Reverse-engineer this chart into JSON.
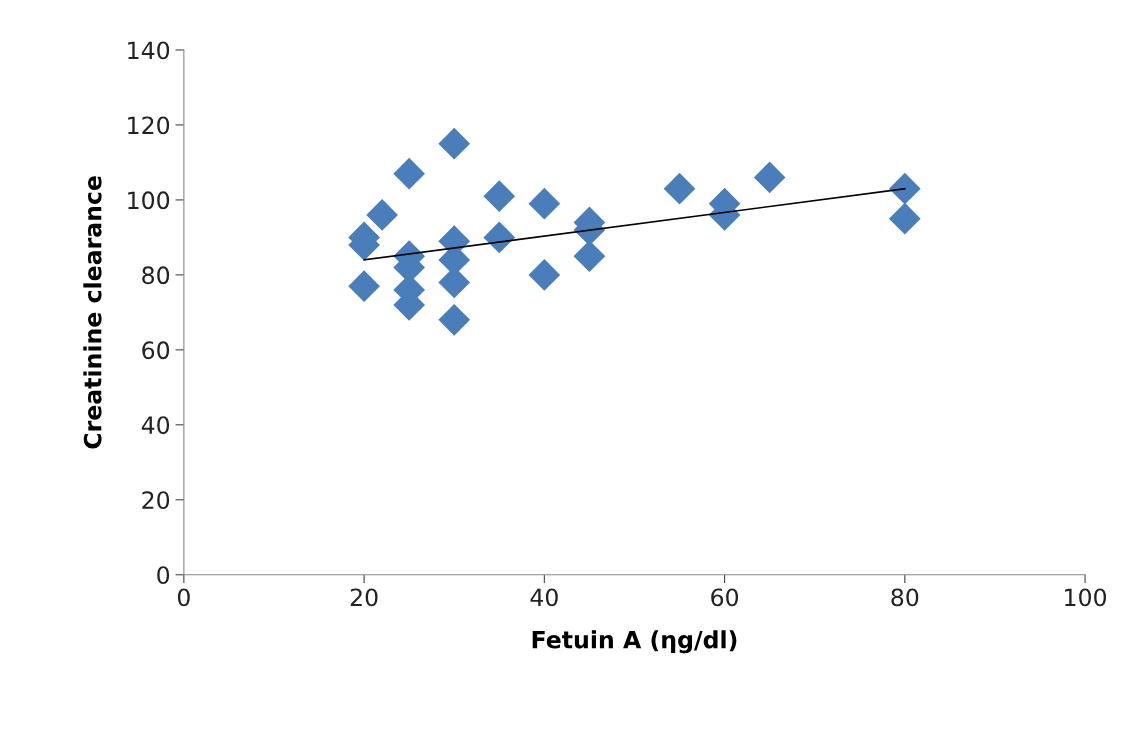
{
  "chart_data": {
    "type": "scatter",
    "xlabel": "Fetuin A (ηg/dl)",
    "ylabel": "Creatinine clearance",
    "xlim": [
      0,
      100
    ],
    "xticks": [
      0,
      20,
      40,
      60,
      80,
      100
    ],
    "ylim": [
      0,
      140
    ],
    "yticks": [
      0,
      20,
      40,
      60,
      80,
      100,
      120,
      140
    ],
    "grid": false,
    "legend": false,
    "marker": "diamond",
    "series": [
      {
        "color": "#4a7ebb",
        "x": [
          20,
          20,
          20,
          22,
          25,
          25,
          25,
          25,
          25,
          30,
          30,
          30,
          30,
          30,
          35,
          35,
          40,
          40,
          45,
          45,
          45,
          55,
          60,
          60,
          65,
          80,
          80
        ],
        "values": [
          90,
          88,
          77,
          96,
          107,
          85,
          82,
          76,
          72,
          115,
          89,
          84,
          78,
          68,
          101,
          90,
          99,
          80,
          94,
          92,
          85,
          103,
          99,
          96,
          106,
          103,
          95
        ]
      },
      {
        "type": "line",
        "color": "#000000",
        "line_style": "solid",
        "marker": "none",
        "x": [
          20,
          80
        ],
        "values": [
          84,
          103
        ]
      }
    ]
  }
}
